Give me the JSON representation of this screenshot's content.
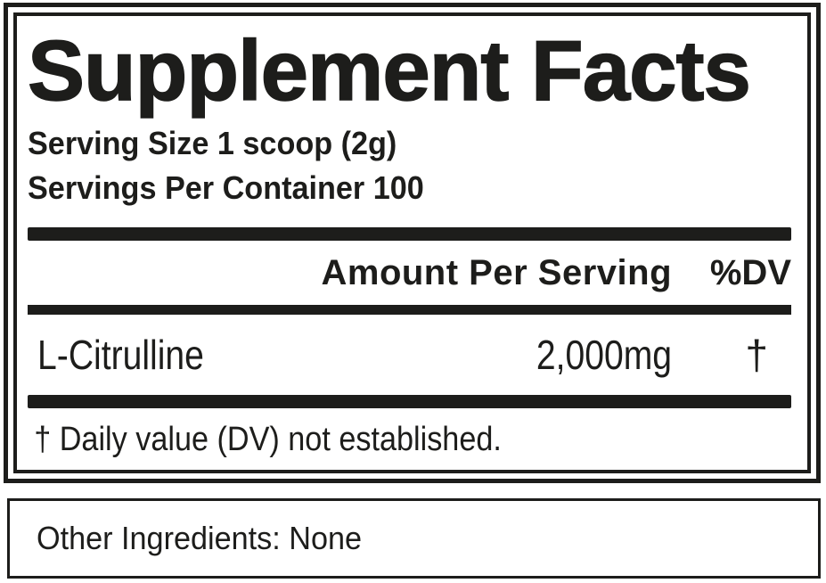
{
  "colors": {
    "ink": "#1d1d1b",
    "background": "#ffffff"
  },
  "panel": {
    "title": "Supplement Facts",
    "serving_size": "Serving Size 1 scoop (2g)",
    "servings_per_container": "Servings Per Container 100",
    "header": {
      "amount": "Amount Per Serving",
      "dv": "%DV"
    },
    "rows": [
      {
        "name": "L-Citrulline",
        "amount": "2,000mg",
        "dv": "†"
      }
    ],
    "footnote": "† Daily value (DV) not established."
  },
  "other_ingredients": {
    "text": "Other Ingredients: None"
  }
}
